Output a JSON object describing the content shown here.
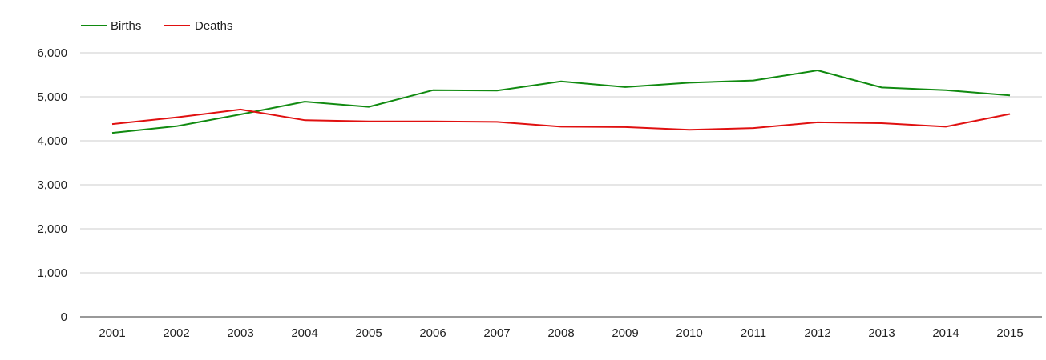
{
  "chart_data": {
    "type": "line",
    "title": "",
    "xlabel": "",
    "ylabel": "",
    "x": [
      "2001",
      "2002",
      "2003",
      "2004",
      "2005",
      "2006",
      "2007",
      "2008",
      "2009",
      "2010",
      "2011",
      "2012",
      "2013",
      "2014",
      "2015"
    ],
    "ylim": [
      0,
      6000
    ],
    "yticks": [
      "0",
      "1,000",
      "2,000",
      "3,000",
      "4,000",
      "5,000",
      "6,000"
    ],
    "ytick_values": [
      0,
      1000,
      2000,
      3000,
      4000,
      5000,
      6000
    ],
    "grid": true,
    "legend_position": "top-left",
    "series": [
      {
        "name": "Births",
        "color": "#108a10",
        "values": [
          4180,
          4330,
          4600,
          4890,
          4770,
          5150,
          5140,
          5350,
          5220,
          5320,
          5370,
          5600,
          5210,
          5150,
          5030
        ]
      },
      {
        "name": "Deaths",
        "color": "#e01010",
        "values": [
          4380,
          4530,
          4710,
          4470,
          4440,
          4440,
          4430,
          4320,
          4310,
          4250,
          4290,
          4420,
          4400,
          4320,
          4610
        ]
      }
    ]
  }
}
